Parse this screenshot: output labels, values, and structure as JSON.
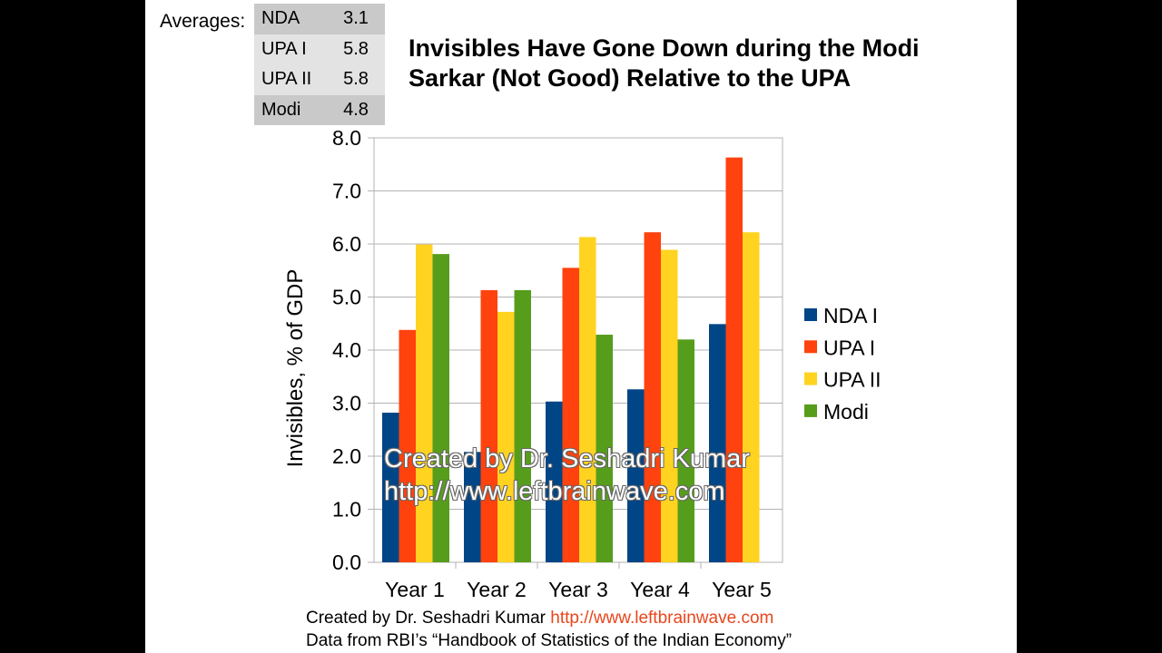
{
  "averages": {
    "label": "Averages:",
    "rows": [
      {
        "name": "NDA",
        "value": "3.1"
      },
      {
        "name": "UPA I",
        "value": "5.8"
      },
      {
        "name": "UPA II",
        "value": "5.8"
      },
      {
        "name": "Modi",
        "value": "4.8"
      }
    ]
  },
  "watermark": {
    "line1": "Created by Dr. Seshadri Kumar",
    "line2": "http://www.leftbrainwave.com"
  },
  "footer": {
    "created_prefix": "Created by Dr. Seshadri Kumar",
    "created_link": "http://www.leftbrainwave.com",
    "source": "Data from RBI’s “Handbook of Statistics of the Indian Economy”"
  },
  "chart_data": {
    "type": "bar",
    "title": "Invisibles Have Gone Down during the Modi Sarkar (Not Good) Relative to the UPA",
    "xlabel": "",
    "ylabel": "Invisibles, % of GDP",
    "categories": [
      "Year 1",
      "Year 2",
      "Year 3",
      "Year 4",
      "Year 5"
    ],
    "ylim": [
      0,
      8
    ],
    "yticks": [
      "0.0",
      "1.0",
      "2.0",
      "3.0",
      "4.0",
      "5.0",
      "6.0",
      "7.0",
      "8.0"
    ],
    "grid": true,
    "legend_position": "right",
    "series": [
      {
        "name": "NDA I",
        "color": "#004586",
        "values": [
          2.82,
          2.08,
          3.03,
          3.26,
          4.49
        ]
      },
      {
        "name": "UPA I",
        "color": "#ff420e",
        "values": [
          4.38,
          5.13,
          5.55,
          6.22,
          7.63
        ]
      },
      {
        "name": "UPA II",
        "color": "#ffd320",
        "values": [
          5.99,
          4.72,
          6.13,
          5.89,
          6.22
        ]
      },
      {
        "name": "Modi",
        "color": "#579d1c",
        "values": [
          5.81,
          5.13,
          4.29,
          4.2,
          null
        ]
      }
    ]
  }
}
